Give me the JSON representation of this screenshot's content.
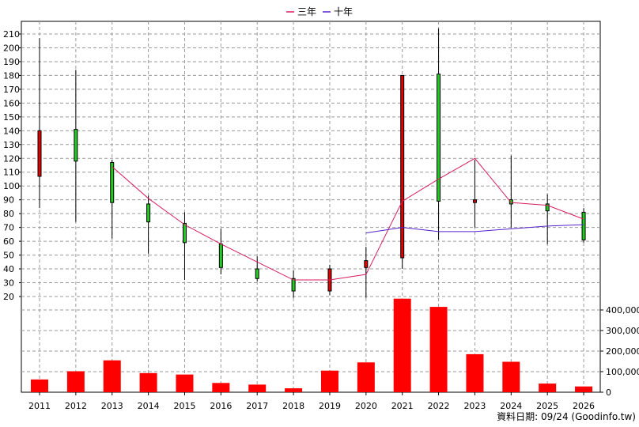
{
  "chart_data": {
    "type": "candlestick",
    "years": [
      "2011",
      "2012",
      "2013",
      "2014",
      "2015",
      "2016",
      "2017",
      "2018",
      "2019",
      "2020",
      "2021",
      "2022",
      "2023",
      "2024",
      "2025",
      "2026"
    ],
    "price_axis": {
      "min": 20,
      "max": 210,
      "step": 10,
      "labels": [
        "20",
        "30",
        "40",
        "50",
        "60",
        "70",
        "80",
        "90",
        "100",
        "110",
        "120",
        "130",
        "140",
        "150",
        "160",
        "170",
        "180",
        "190",
        "200",
        "210"
      ]
    },
    "volume_axis": {
      "min": 0,
      "max": 400000,
      "labels": [
        "0",
        "100,000",
        "200,000",
        "300,000",
        "400,000"
      ]
    },
    "candles": [
      {
        "year": "2011",
        "open": 107,
        "close": 140,
        "high": 207,
        "low": 84
      },
      {
        "year": "2012",
        "open": 141,
        "close": 118,
        "high": 184,
        "low": 74
      },
      {
        "year": "2013",
        "open": 117,
        "close": 88,
        "high": 119,
        "low": 62
      },
      {
        "year": "2014",
        "open": 87,
        "close": 74,
        "high": 93,
        "low": 51
      },
      {
        "year": "2015",
        "open": 73,
        "close": 59,
        "high": 81,
        "low": 32
      },
      {
        "year": "2016",
        "open": 58,
        "close": 41,
        "high": 69,
        "low": 36
      },
      {
        "year": "2017",
        "open": 40,
        "close": 33,
        "high": 49,
        "low": 31
      },
      {
        "year": "2018",
        "open": 33,
        "close": 24,
        "high": 39,
        "low": 19
      },
      {
        "year": "2019",
        "open": 24,
        "close": 40,
        "high": 43,
        "low": 21
      },
      {
        "year": "2020",
        "open": 41,
        "close": 46,
        "high": 56,
        "low": 19
      },
      {
        "year": "2021",
        "open": 48,
        "close": 180,
        "high": 180,
        "low": 40
      },
      {
        "year": "2022",
        "open": 181,
        "close": 89,
        "high": 214,
        "low": 61
      },
      {
        "year": "2023",
        "open": 88,
        "close": 90,
        "high": 119,
        "low": 70
      },
      {
        "year": "2024",
        "open": 90,
        "close": 87,
        "high": 122,
        "low": 70
      },
      {
        "year": "2025",
        "open": 87,
        "close": 82,
        "high": 94,
        "low": 58
      },
      {
        "year": "2026",
        "open": 81,
        "close": 61,
        "high": 84,
        "low": 59
      }
    ],
    "series": [
      {
        "name": "三年",
        "color": "#d81b60",
        "points": [
          [
            "2013",
            114
          ],
          [
            "2014",
            91
          ],
          [
            "2015",
            72
          ],
          [
            "2016",
            58
          ],
          [
            "2017",
            45
          ],
          [
            "2018",
            32
          ],
          [
            "2019",
            32
          ],
          [
            "2020",
            36
          ],
          [
            "2021",
            89
          ],
          [
            "2022",
            105
          ],
          [
            "2023",
            120
          ],
          [
            "2024",
            88
          ],
          [
            "2025",
            86
          ],
          [
            "2026",
            76
          ]
        ]
      },
      {
        "name": "十年",
        "color": "#5522cc",
        "points": [
          [
            "2020",
            66
          ],
          [
            "2021",
            70
          ],
          [
            "2022",
            67
          ],
          [
            "2023",
            67
          ],
          [
            "2024",
            69
          ],
          [
            "2025",
            71
          ],
          [
            "2026",
            72
          ]
        ]
      }
    ],
    "volumes": [
      {
        "year": "2011",
        "value": 62000
      },
      {
        "year": "2012",
        "value": 102000
      },
      {
        "year": "2013",
        "value": 155000
      },
      {
        "year": "2014",
        "value": 93000
      },
      {
        "year": "2015",
        "value": 86000
      },
      {
        "year": "2016",
        "value": 45000
      },
      {
        "year": "2017",
        "value": 37000
      },
      {
        "year": "2018",
        "value": 19000
      },
      {
        "year": "2019",
        "value": 105000
      },
      {
        "year": "2020",
        "value": 145000
      },
      {
        "year": "2021",
        "value": 455000
      },
      {
        "year": "2022",
        "value": 415000
      },
      {
        "year": "2023",
        "value": 185000
      },
      {
        "year": "2024",
        "value": 148000
      },
      {
        "year": "2025",
        "value": 42000
      },
      {
        "year": "2026",
        "value": 28000
      }
    ],
    "colors": {
      "up": "#e00000",
      "down": "#22cc22",
      "volume": "#ff0000",
      "grid": "#9a9a9a"
    },
    "grid": true,
    "legend_position": "top-center"
  },
  "footer": {
    "text": "資料日期: 09/24 (Goodinfo.tw)"
  }
}
